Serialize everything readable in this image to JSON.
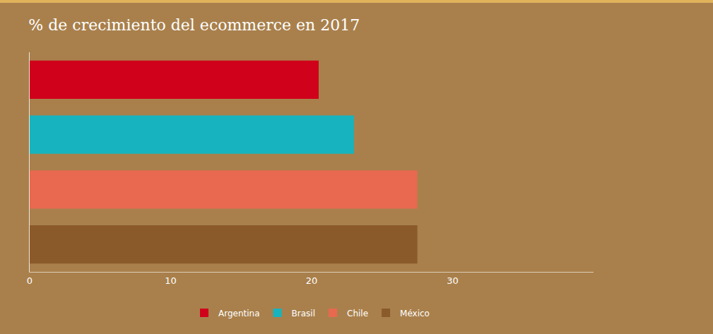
{
  "chart_data": {
    "type": "bar",
    "title": "% de crecimiento del ecommerce en 2017",
    "orientation": "horizontal",
    "series": [
      {
        "name": "Argentina",
        "color": "#d0021b",
        "values": [
          20.5
        ]
      },
      {
        "name": "Brasil",
        "color": "#17b3bf",
        "values": [
          23
        ]
      },
      {
        "name": "Chile",
        "color": "#e8694f",
        "values": [
          27.5
        ]
      },
      {
        "name": "México",
        "color": "#8b5a2b",
        "values": [
          27.5
        ]
      }
    ],
    "xlim": [
      0,
      40
    ],
    "xticks": [
      0,
      10,
      20,
      30
    ],
    "grid": false,
    "legend": "bottom",
    "tick_labels": "x"
  }
}
